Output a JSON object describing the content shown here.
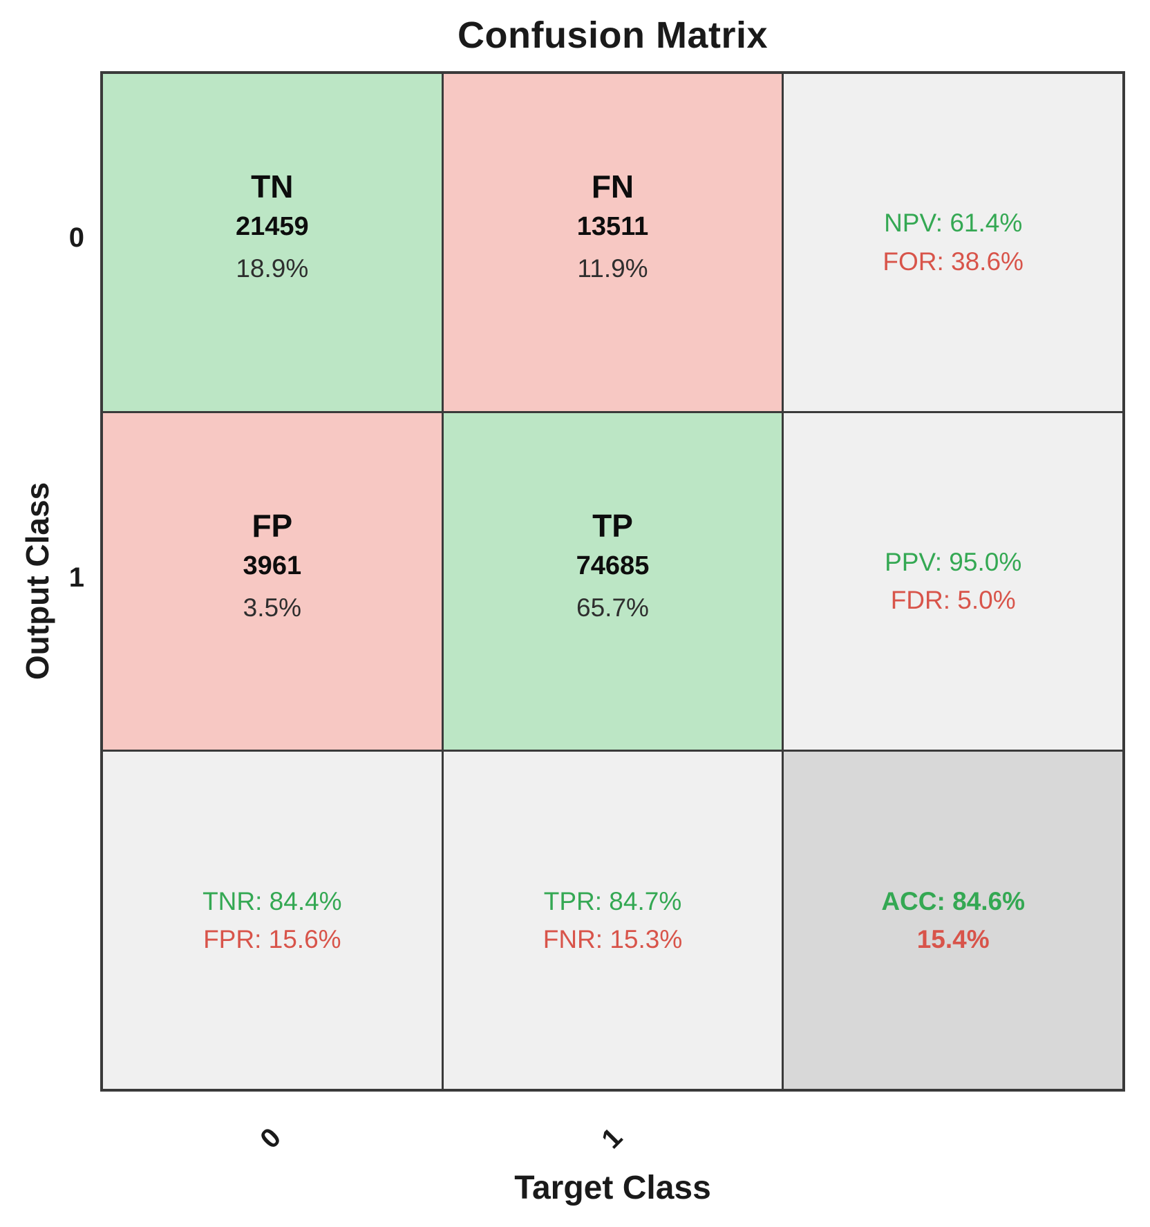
{
  "title": "Confusion Matrix",
  "axes": {
    "y_label": "Output Class",
    "x_label": "Target Class",
    "y_ticks": {
      "t0": "0",
      "t1": "1"
    },
    "x_ticks": {
      "t0": "0",
      "t1": "1"
    }
  },
  "cells": {
    "tn": {
      "label": "TN",
      "count": "21459",
      "percent": "18.9%"
    },
    "fn": {
      "label": "FN",
      "count": "13511",
      "percent": "11.9%"
    },
    "fp": {
      "label": "FP",
      "count": "3961",
      "percent": "3.5%"
    },
    "tp": {
      "label": "TP",
      "count": "74685",
      "percent": "65.7%"
    },
    "row0_summary": {
      "good": "NPV: 61.4%",
      "bad": "FOR: 38.6%"
    },
    "row1_summary": {
      "good": "PPV: 95.0%",
      "bad": "FDR: 5.0%"
    },
    "col0_summary": {
      "good": "TNR: 84.4%",
      "bad": "FPR: 15.6%"
    },
    "col1_summary": {
      "good": "TPR: 84.7%",
      "bad": "FNR: 15.3%"
    },
    "overall": {
      "good": "ACC: 84.6%",
      "bad": "15.4%"
    }
  },
  "colors": {
    "green_bg": "#bce6c5",
    "red_bg": "#f7c8c3",
    "gray_bg": "#f0f0f0",
    "dark_gray_bg": "#d8d8d8",
    "green_text": "#34a853",
    "red_text": "#d8544a",
    "border": "#3a3a3a"
  },
  "chart_data": {
    "type": "heatmap",
    "title": "Confusion Matrix",
    "xlabel": "Target Class",
    "ylabel": "Output Class",
    "classes": [
      "0",
      "1"
    ],
    "cell_labels": [
      [
        "TN",
        "FN"
      ],
      [
        "FP",
        "TP"
      ]
    ],
    "matrix_counts": [
      [
        21459,
        13511
      ],
      [
        3961,
        74685
      ]
    ],
    "matrix_percents": [
      [
        18.9,
        11.9
      ],
      [
        3.5,
        65.7
      ]
    ],
    "metrics_percent": {
      "NPV": 61.4,
      "FOR": 38.6,
      "PPV": 95.0,
      "FDR": 5.0,
      "TNR": 84.4,
      "FPR": 15.6,
      "TPR": 84.7,
      "FNR": 15.3,
      "ACC": 84.6,
      "ERR": 15.4
    },
    "legend_position": "none",
    "grid": true
  }
}
